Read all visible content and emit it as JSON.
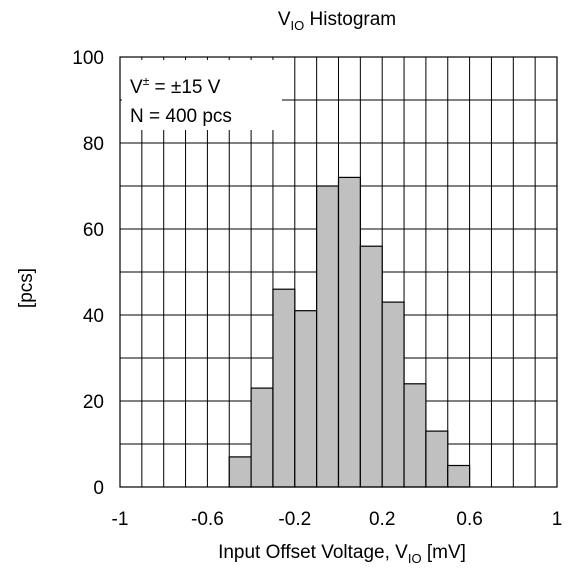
{
  "chart_data": {
    "type": "bar",
    "title": {
      "main": "V",
      "sub": "IO",
      "rest": " Histogram"
    },
    "xlabel": {
      "main": "Input Offset Voltage, V",
      "sub": "IO",
      "rest": " [mV]"
    },
    "ylabel": "[pcs]",
    "xlim": [
      -1,
      1
    ],
    "ylim": [
      0,
      100
    ],
    "x_ticks": [
      -1,
      -0.6,
      -0.2,
      0.2,
      0.6,
      1
    ],
    "x_tick_labels": [
      "-1",
      "-0.6",
      "-0.2",
      "0.2",
      "0.6",
      "1"
    ],
    "y_ticks": [
      0,
      20,
      40,
      60,
      80,
      100
    ],
    "y_tick_labels": [
      "0",
      "20",
      "40",
      "60",
      "80",
      "100"
    ],
    "grid": true,
    "bin_width": 0.1,
    "bins": [
      {
        "x0": -0.5,
        "x1": -0.4,
        "value": 7
      },
      {
        "x0": -0.4,
        "x1": -0.3,
        "value": 23
      },
      {
        "x0": -0.3,
        "x1": -0.2,
        "value": 46
      },
      {
        "x0": -0.2,
        "x1": -0.1,
        "value": 41
      },
      {
        "x0": -0.1,
        "x1": 0.0,
        "value": 70
      },
      {
        "x0": 0.0,
        "x1": 0.1,
        "value": 72
      },
      {
        "x0": 0.1,
        "x1": 0.2,
        "value": 56
      },
      {
        "x0": 0.2,
        "x1": 0.3,
        "value": 43
      },
      {
        "x0": 0.3,
        "x1": 0.4,
        "value": 24
      },
      {
        "x0": 0.4,
        "x1": 0.5,
        "value": 13
      },
      {
        "x0": 0.5,
        "x1": 0.6,
        "value": 5
      }
    ],
    "annotation": {
      "line1_prefix": "V",
      "line1_sup": "±",
      "line1_rest": " = ±15 V",
      "line2": "N = 400 pcs"
    },
    "colors": {
      "bar_fill": "#c0c0c0",
      "bar_stroke": "#000000",
      "grid": "#000000"
    }
  }
}
